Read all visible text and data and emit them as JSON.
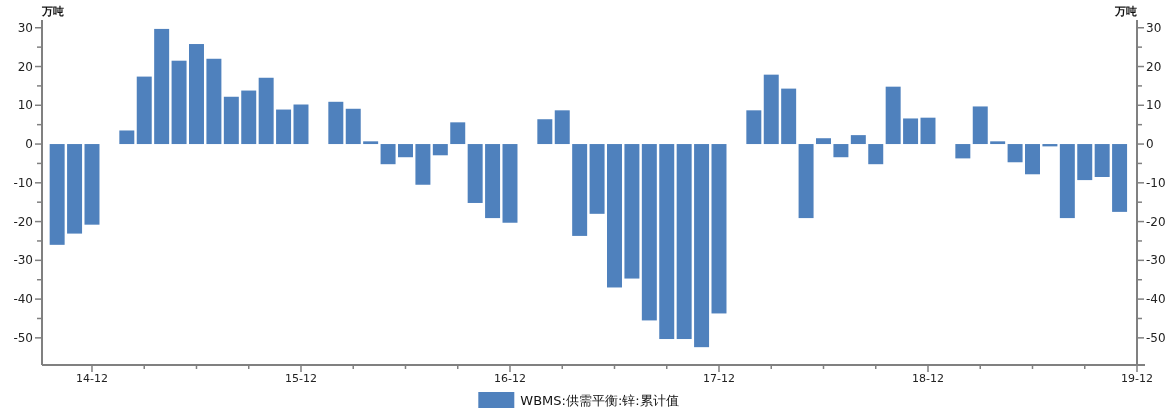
{
  "chart_data": {
    "type": "bar",
    "ylabel": "万吨",
    "y2label": "万吨",
    "categories": [
      null,
      null,
      "14-12",
      null,
      null,
      null,
      null,
      null,
      null,
      null,
      null,
      null,
      null,
      null,
      "15-12",
      null,
      null,
      null,
      null,
      null,
      null,
      null,
      null,
      null,
      null,
      null,
      "16-12",
      null,
      null,
      null,
      null,
      null,
      null,
      null,
      null,
      null,
      null,
      null,
      "17-12",
      null,
      null,
      null,
      null,
      null,
      null,
      null,
      null,
      null,
      null,
      null,
      "18-12",
      null,
      null,
      null,
      null,
      null,
      null,
      null,
      null,
      null,
      null,
      null,
      "19-12"
    ],
    "series": [
      {
        "name": "WBMS:供需平衡:锌:累计值",
        "color": "#4f81bd",
        "values": [
          -26,
          -23.1,
          -20.8,
          null,
          3.5,
          17.4,
          29.7,
          21.5,
          25.8,
          22.0,
          12.2,
          13.8,
          17.1,
          8.9,
          10.2,
          null,
          10.9,
          9.1,
          0.7,
          -5.2,
          -3.4,
          -10.5,
          -2.9,
          5.6,
          -15.2,
          -19.1,
          -20.3,
          null,
          6.4,
          8.7,
          -23.7,
          -18.0,
          -37.0,
          -34.7,
          -45.5,
          -50.3,
          -50.3,
          -52.4,
          -43.7,
          null,
          8.7,
          17.9,
          14.3,
          -19.1,
          1.5,
          -3.4,
          2.3,
          -5.2,
          14.8,
          6.6,
          6.8,
          null,
          -3.7,
          9.7,
          0.7,
          -4.7,
          -7.8,
          -0.6,
          -19.1,
          -9.3,
          -8.5,
          -17.5,
          null
        ]
      }
    ],
    "ylim": [
      -57,
      32
    ],
    "yticks": [
      -50,
      -40,
      -30,
      -20,
      -10,
      0,
      10,
      20,
      30
    ],
    "y2lim": [
      -57,
      32
    ],
    "y2ticks": [
      -50,
      -40,
      -30,
      -20,
      -10,
      0,
      10,
      20,
      30
    ],
    "legend": "bottom"
  }
}
